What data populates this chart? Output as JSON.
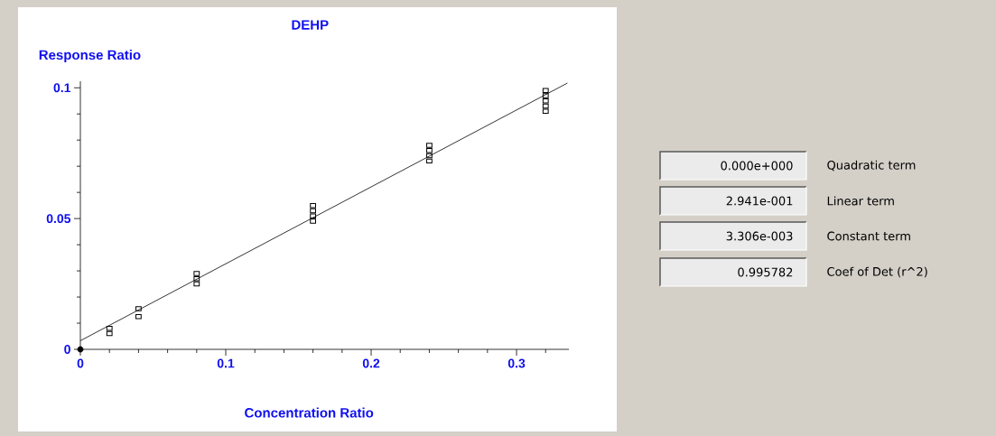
{
  "chart_data": {
    "type": "scatter",
    "title": "DEHP",
    "xlabel": "Concentration Ratio",
    "ylabel": "Response Ratio",
    "xlim": [
      0,
      0.336
    ],
    "ylim": [
      0,
      0.1025
    ],
    "xticks": [
      0,
      {
        "value": 0.02,
        "label": null
      },
      {
        "value": 0.04,
        "label": null
      },
      {
        "value": 0.06,
        "label": null
      },
      {
        "value": 0.08,
        "label": null
      },
      0.1,
      {
        "value": 0.12,
        "label": null
      },
      {
        "value": 0.14,
        "label": null
      },
      {
        "value": 0.16,
        "label": null
      },
      {
        "value": 0.18,
        "label": null
      },
      0.2,
      {
        "value": 0.22,
        "label": null
      },
      {
        "value": 0.24,
        "label": null
      },
      {
        "value": 0.26,
        "label": null
      },
      {
        "value": 0.28,
        "label": null
      },
      0.3,
      {
        "value": 0.32,
        "label": null
      }
    ],
    "yticks": [
      0,
      {
        "value": 0.01,
        "label": null
      },
      {
        "value": 0.02,
        "label": null
      },
      {
        "value": 0.03,
        "label": null
      },
      {
        "value": 0.04,
        "label": null
      },
      0.05,
      {
        "value": 0.06,
        "label": null
      },
      {
        "value": 0.07,
        "label": null
      },
      {
        "value": 0.08,
        "label": null
      },
      {
        "value": 0.09,
        "label": null
      },
      0.1
    ],
    "series": [
      {
        "marker": "square",
        "color": "#000000",
        "x": [
          0.02,
          0.02,
          0.04,
          0.04,
          0.08,
          0.08,
          0.08,
          0.16,
          0.16,
          0.16,
          0.16,
          0.24,
          0.24,
          0.24,
          0.24,
          0.32,
          0.32,
          0.32,
          0.32,
          0.32
        ],
        "values": [
          0.006,
          0.008,
          0.0125,
          0.0155,
          0.025,
          0.027,
          0.029,
          0.049,
          0.051,
          0.053,
          0.055,
          0.072,
          0.074,
          0.076,
          0.078,
          0.091,
          0.093,
          0.095,
          0.097,
          0.099
        ]
      },
      {
        "marker": "circle",
        "color": "#000000",
        "x": [
          0
        ],
        "values": [
          0
        ]
      },
      {
        "type": "line",
        "marker": "none",
        "color": "#000000",
        "x": [
          0,
          0.335
        ],
        "values": [
          0.0033,
          0.1018
        ]
      }
    ],
    "annotations": [
      "0.000e+000",
      "Quadratic term",
      "2.941e-001",
      "Linear term",
      "3.306e-003",
      "Constant term",
      "0.995782",
      "Coef of Det (r^2)"
    ]
  }
}
